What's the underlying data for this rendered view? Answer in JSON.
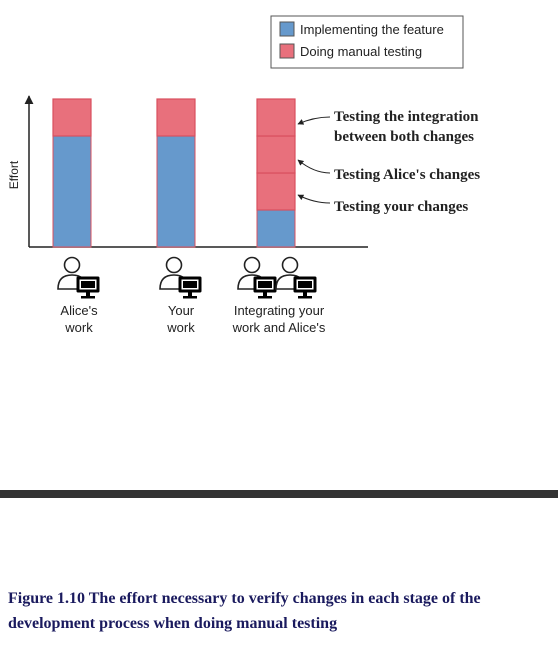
{
  "chart_data": {
    "type": "bar",
    "stacked": true,
    "ylabel": "Effort",
    "categories": [
      [
        "Alice's",
        "work"
      ],
      [
        "Your",
        "work"
      ],
      [
        "Integrating your",
        "work and Alice's"
      ]
    ],
    "series": [
      {
        "name": "Implementing the feature",
        "color": "#6699cc",
        "values": [
          3,
          3,
          1
        ]
      },
      {
        "name": "Doing manual testing",
        "color": "#e8707c",
        "segments": [
          [
            1
          ],
          [
            1
          ],
          [
            1,
            1,
            1
          ]
        ]
      }
    ],
    "ylim": [
      0,
      4.1
    ],
    "legend_position": "top-right",
    "grid": false,
    "annotations": [
      {
        "text": [
          "Testing the integration",
          "between both changes"
        ],
        "category": 2,
        "segment": 2
      },
      {
        "text": [
          "Testing Alice's changes"
        ],
        "category": 2,
        "segment": 1
      },
      {
        "text": [
          "Testing your changes"
        ],
        "category": 2,
        "segment": 0
      }
    ],
    "icons": [
      "person-at-computer-icon",
      "person-at-computer-icon",
      "two-people-at-computers-icon"
    ]
  },
  "caption": "Figure 1.10 The effort necessary to verify changes in each stage of the development process when doing manual testing"
}
